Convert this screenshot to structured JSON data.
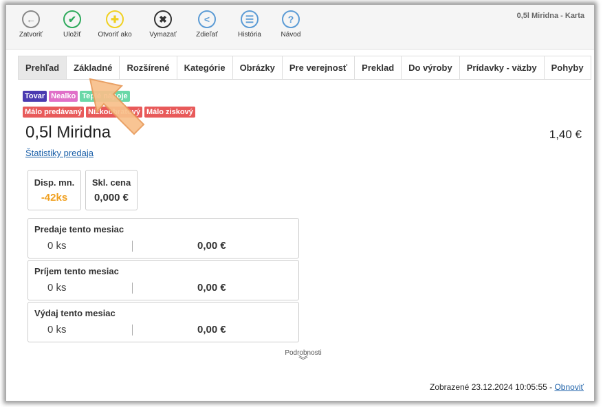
{
  "window_title": "0,5l Miridna - Karta",
  "toolbar": [
    {
      "label": "Zatvoriť",
      "icon": "arrow-left-icon",
      "color": "#888888",
      "glyph": "←"
    },
    {
      "label": "Uložiť",
      "icon": "check-icon",
      "color": "#2eaa5c",
      "glyph": "✔"
    },
    {
      "label": "Otvoriť ako",
      "icon": "plus-icon",
      "color": "#f0d020",
      "glyph": "✚"
    },
    {
      "label": "Vymazať",
      "icon": "close-icon",
      "color": "#333333",
      "glyph": "✖"
    },
    {
      "label": "Zdieľať",
      "icon": "share-icon",
      "color": "#5b9bd5",
      "glyph": "<"
    },
    {
      "label": "História",
      "icon": "list-icon",
      "color": "#5b9bd5",
      "glyph": "☰"
    },
    {
      "label": "Návod",
      "icon": "help-icon",
      "color": "#5b9bd5",
      "glyph": "?"
    }
  ],
  "tabs": [
    "Prehľad",
    "Základné",
    "Rozšírené",
    "Kategórie",
    "Obrázky",
    "Pre verejnosť",
    "Preklad",
    "Do výroby",
    "Prídavky - väzby",
    "Pohyby"
  ],
  "active_tab": "Prehľad",
  "badges_row1": [
    {
      "label": "Tovar",
      "color": "#4a3ab0"
    },
    {
      "label": "Nealko",
      "color": "#e070c8"
    },
    {
      "label": "Teplé nápoje",
      "color": "#6ad8a8"
    }
  ],
  "badges_row2": [
    {
      "label": "Málo predávaný",
      "color": "#e85a5a"
    },
    {
      "label": "Nízkoobratový",
      "color": "#e85a5a"
    },
    {
      "label": "Málo ziskový",
      "color": "#e85a5a"
    }
  ],
  "product": {
    "name": "0,5l Miridna",
    "price": "1,40 €",
    "stats_link": "Štatistiky predaja"
  },
  "stock": [
    {
      "label": "Disp. mn.",
      "value": "-42ks",
      "color": "#f0a020"
    },
    {
      "label": "Skl. cena",
      "value": "0,000 €",
      "color": "#333333"
    }
  ],
  "month": [
    {
      "title": "Predaje tento mesiac",
      "qty": "0 ks",
      "amount": "0,00 €"
    },
    {
      "title": "Príjem tento mesiac",
      "qty": "0 ks",
      "amount": "0,00 €"
    },
    {
      "title": "Výdaj tento mesiac",
      "qty": "0 ks",
      "amount": "0,00 €"
    }
  ],
  "details_label": "Podrobnosti",
  "footer": {
    "shown": "Zobrazené 23.12.2024 10:05:55 - ",
    "refresh": "Obnoviť"
  }
}
